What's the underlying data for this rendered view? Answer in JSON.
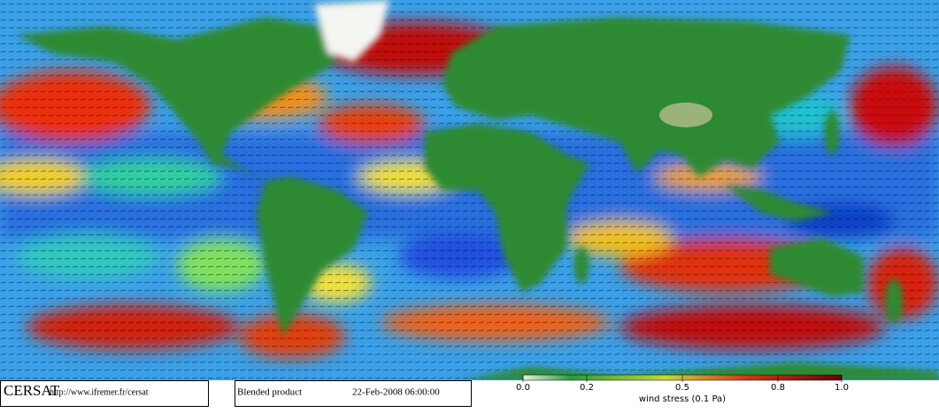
{
  "footer": {
    "logo": "CERSAT",
    "url": "http://www.ifremer.fr/cersat",
    "product": "Blended product",
    "datetime": "22-Feb-2008 06:00:00"
  },
  "colorbar": {
    "label": "wind stress (0.1 Pa)",
    "lim": [
      0,
      1
    ],
    "ticks": [
      {
        "value": 0,
        "label": "0.0"
      },
      0.2,
      0.5,
      0.8,
      {
        "value": 1,
        "label": "1.0"
      }
    ]
  }
}
